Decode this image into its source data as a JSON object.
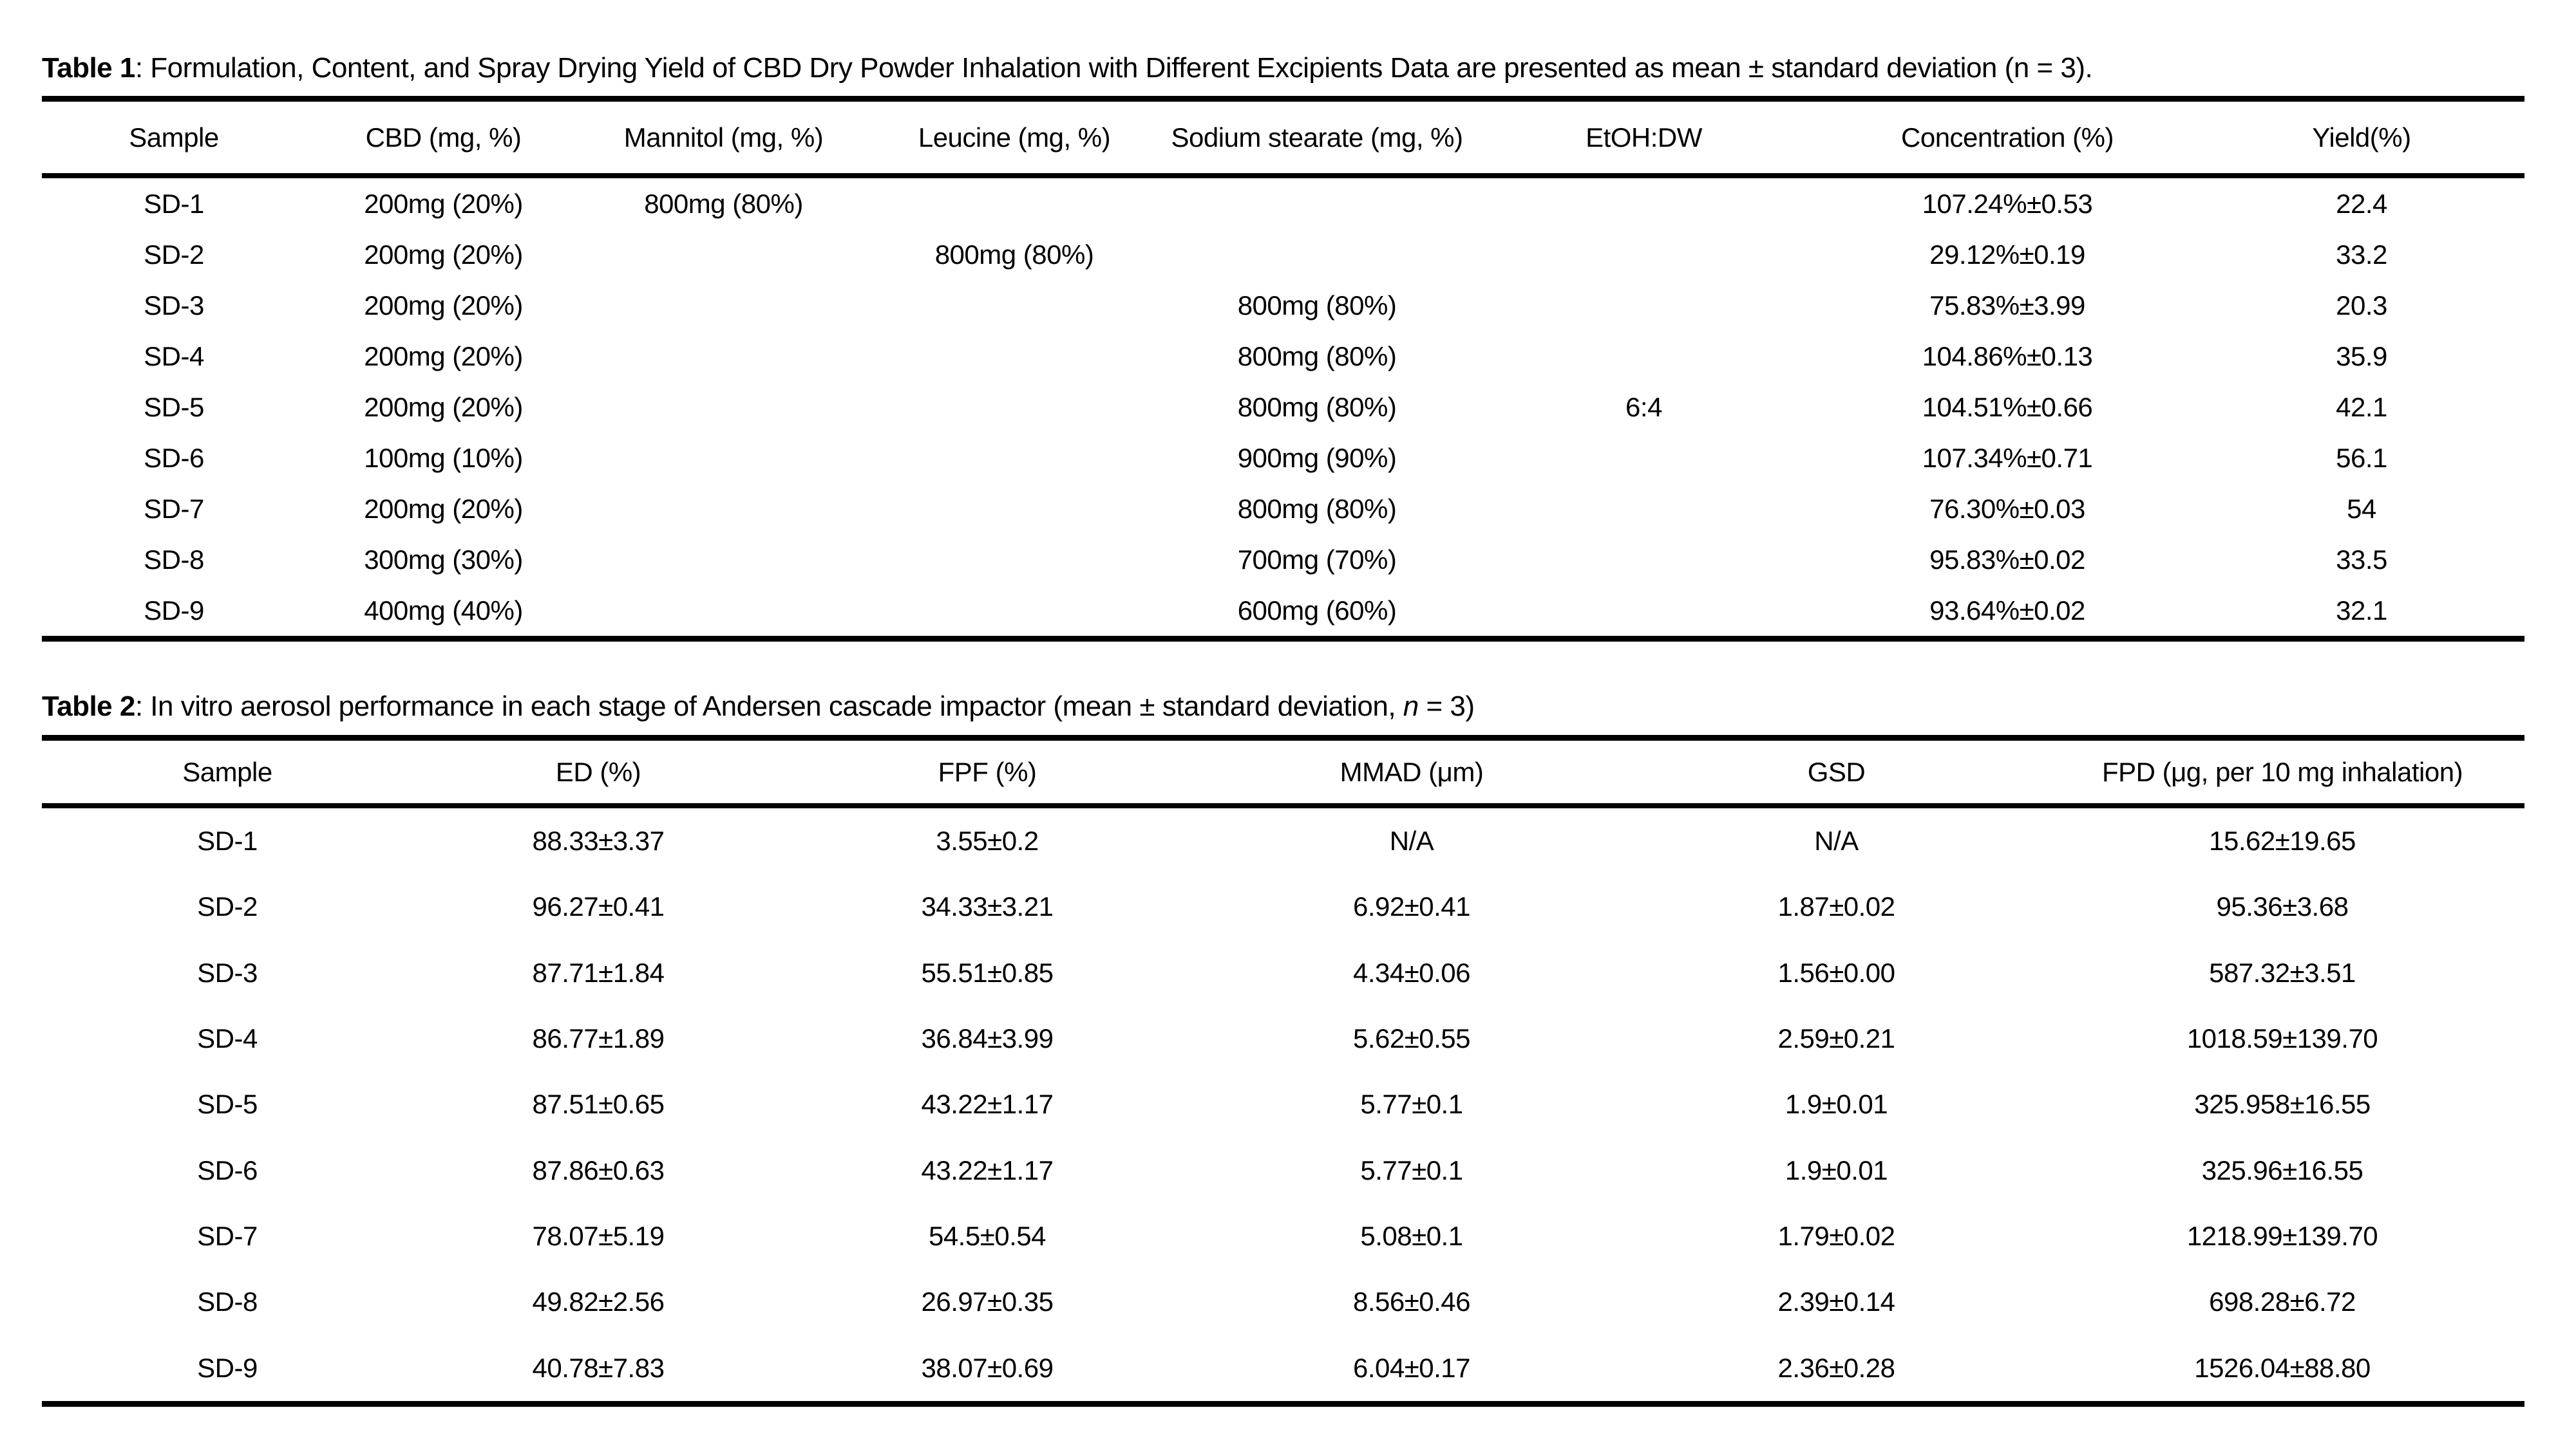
{
  "table1": {
    "title_label": "Table 1",
    "title_text": ": Formulation, Content, and Spray Drying Yield of CBD Dry Powder Inhalation with Different Excipients Data are presented as mean ± standard deviation (n = 3).",
    "columns": [
      "Sample",
      "CBD (mg, %)",
      "Mannitol (mg, %)",
      "Leucine (mg, %)",
      "Sodium stearate (mg, %)",
      "EtOH:DW",
      "Concentration (%)",
      "Yield(%)"
    ],
    "rows": [
      [
        "SD-1",
        "200mg (20%)",
        "800mg (80%)",
        "",
        "",
        "",
        "107.24%±0.53",
        "22.4"
      ],
      [
        "SD-2",
        "200mg (20%)",
        "",
        "800mg (80%)",
        "",
        "",
        "29.12%±0.19",
        "33.2"
      ],
      [
        "SD-3",
        "200mg (20%)",
        "",
        "",
        "800mg (80%)",
        "",
        "75.83%±3.99",
        "20.3"
      ],
      [
        "SD-4",
        "200mg (20%)",
        "",
        "",
        "800mg (80%)",
        "",
        "104.86%±0.13",
        "35.9"
      ],
      [
        "SD-5",
        "200mg (20%)",
        "",
        "",
        "800mg (80%)",
        "6:4",
        "104.51%±0.66",
        "42.1"
      ],
      [
        "SD-6",
        "100mg (10%)",
        "",
        "",
        "900mg (90%)",
        "",
        "107.34%±0.71",
        "56.1"
      ],
      [
        "SD-7",
        "200mg (20%)",
        "",
        "",
        "800mg (80%)",
        "",
        "76.30%±0.03",
        "54"
      ],
      [
        "SD-8",
        "300mg (30%)",
        "",
        "",
        "700mg (70%)",
        "",
        "95.83%±0.02",
        "33.5"
      ],
      [
        "SD-9",
        "400mg (40%)",
        "",
        "",
        "600mg (60%)",
        "",
        "93.64%±0.02",
        "32.1"
      ]
    ]
  },
  "table2": {
    "title_label": "Table 2",
    "title_prefix": ": In vitro aerosol performance in each stage of Andersen cascade impactor (mean ± standard deviation, ",
    "title_italic": "n",
    "title_suffix": " = 3)",
    "columns": [
      "Sample",
      "ED (%)",
      "FPF (%)",
      "MMAD (μm)",
      "GSD",
      "FPD (μg, per 10 mg inhalation)"
    ],
    "rows": [
      [
        "SD-1",
        "88.33±3.37",
        "3.55±0.2",
        "N/A",
        "N/A",
        "15.62±19.65"
      ],
      [
        "SD-2",
        "96.27±0.41",
        "34.33±3.21",
        "6.92±0.41",
        "1.87±0.02",
        "95.36±3.68"
      ],
      [
        "SD-3",
        "87.71±1.84",
        "55.51±0.85",
        "4.34±0.06",
        "1.56±0.00",
        "587.32±3.51"
      ],
      [
        "SD-4",
        "86.77±1.89",
        "36.84±3.99",
        "5.62±0.55",
        "2.59±0.21",
        "1018.59±139.70"
      ],
      [
        "SD-5",
        "87.51±0.65",
        "43.22±1.17",
        "5.77±0.1",
        "1.9±0.01",
        "325.958±16.55"
      ],
      [
        "SD-6",
        "87.86±0.63",
        "43.22±1.17",
        "5.77±0.1",
        "1.9±0.01",
        "325.96±16.55"
      ],
      [
        "SD-7",
        "78.07±5.19",
        "54.5±0.54",
        "5.08±0.1",
        "1.79±0.02",
        "1218.99±139.70"
      ],
      [
        "SD-8",
        "49.82±2.56",
        "26.97±0.35",
        "8.56±0.46",
        "2.39±0.14",
        "698.28±6.72"
      ],
      [
        "SD-9",
        "40.78±7.83",
        "38.07±0.69",
        "6.04±0.17",
        "2.36±0.28",
        "1526.04±88.80"
      ]
    ]
  }
}
